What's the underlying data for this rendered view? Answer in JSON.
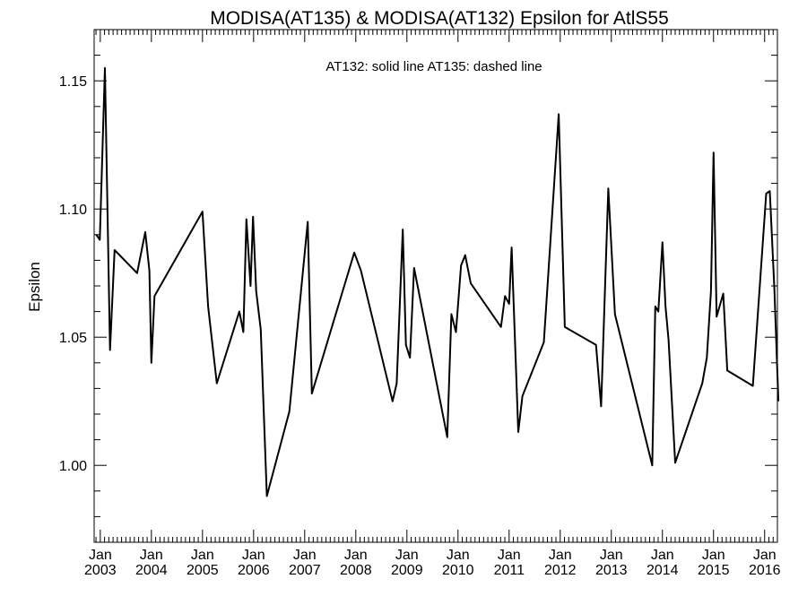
{
  "chart_data": {
    "type": "line",
    "title": "MODISA(AT135) & MODISA(AT132)  Epsilon for AtlS55",
    "annotation": "AT132: solid line   AT135: dashed line",
    "ylabel": "Epsilon",
    "xlabel": "",
    "xlim": [
      2002.88,
      2016.25
    ],
    "ylim": [
      0.97,
      1.17
    ],
    "y_ticks": [
      1.0,
      1.05,
      1.1,
      1.15
    ],
    "y_tick_labels": [
      "1.00",
      "1.05",
      "1.10",
      "1.15"
    ],
    "y_minor_step": 0.01,
    "x_ticks": [
      {
        "value": 2003,
        "month": "Jan",
        "year": "2003"
      },
      {
        "value": 2004,
        "month": "Jan",
        "year": "2004"
      },
      {
        "value": 2005,
        "month": "Jan",
        "year": "2005"
      },
      {
        "value": 2006,
        "month": "Jan",
        "year": "2006"
      },
      {
        "value": 2007,
        "month": "Jan",
        "year": "2007"
      },
      {
        "value": 2008,
        "month": "Jan",
        "year": "2008"
      },
      {
        "value": 2009,
        "month": "Jan",
        "year": "2009"
      },
      {
        "value": 2010,
        "month": "Jan",
        "year": "2010"
      },
      {
        "value": 2011,
        "month": "Jan",
        "year": "2011"
      },
      {
        "value": 2012,
        "month": "Jan",
        "year": "2012"
      },
      {
        "value": 2013,
        "month": "Jan",
        "year": "2013"
      },
      {
        "value": 2014,
        "month": "Jan",
        "year": "2014"
      },
      {
        "value": 2015,
        "month": "Jan",
        "year": "2015"
      },
      {
        "value": 2016,
        "month": "Jan",
        "year": "2016"
      }
    ],
    "grid": false,
    "series": [
      {
        "name": "AT132",
        "style": "solid",
        "color": "#000000",
        "x": [
          2002.92,
          2002.99,
          2003.09,
          2003.19,
          2003.28,
          2003.72,
          2003.88,
          2003.96,
          2004.0,
          2004.06,
          2005.0,
          2005.11,
          2005.28,
          2005.72,
          2005.8,
          2005.86,
          2005.94,
          2005.99,
          2006.05,
          2006.14,
          2006.26,
          2006.7,
          2007.06,
          2007.14,
          2007.97,
          2008.1,
          2008.72,
          2008.8,
          2008.92,
          2008.98,
          2009.06,
          2009.14,
          2009.79,
          2009.87,
          2009.96,
          2010.06,
          2010.14,
          2010.25,
          2010.84,
          2010.92,
          2011.0,
          2011.05,
          2011.18,
          2011.26,
          2011.68,
          2011.97,
          2012.09,
          2012.7,
          2012.8,
          2012.94,
          2013.07,
          2013.8,
          2013.86,
          2013.92,
          2014.0,
          2014.06,
          2014.12,
          2014.25,
          2014.78,
          2014.87,
          2014.95,
          2015.0,
          2015.06,
          2015.19,
          2015.27,
          2015.77,
          2016.03,
          2016.1,
          2016.19,
          2016.27
        ],
        "values": [
          1.09,
          1.088,
          1.155,
          1.045,
          1.084,
          1.075,
          1.091,
          1.076,
          1.04,
          1.066,
          1.099,
          1.062,
          1.032,
          1.06,
          1.052,
          1.096,
          1.07,
          1.097,
          1.068,
          1.053,
          0.988,
          1.021,
          1.095,
          1.028,
          1.083,
          1.076,
          1.025,
          1.032,
          1.092,
          1.047,
          1.042,
          1.077,
          1.011,
          1.059,
          1.052,
          1.078,
          1.082,
          1.071,
          1.054,
          1.066,
          1.063,
          1.085,
          1.013,
          1.027,
          1.048,
          1.137,
          1.054,
          1.047,
          1.023,
          1.108,
          1.059,
          1.0,
          1.062,
          1.06,
          1.087,
          1.062,
          1.049,
          1.001,
          1.032,
          1.042,
          1.068,
          1.122,
          1.058,
          1.067,
          1.037,
          1.031,
          1.106,
          1.107,
          1.069,
          1.025
        ]
      }
    ]
  }
}
